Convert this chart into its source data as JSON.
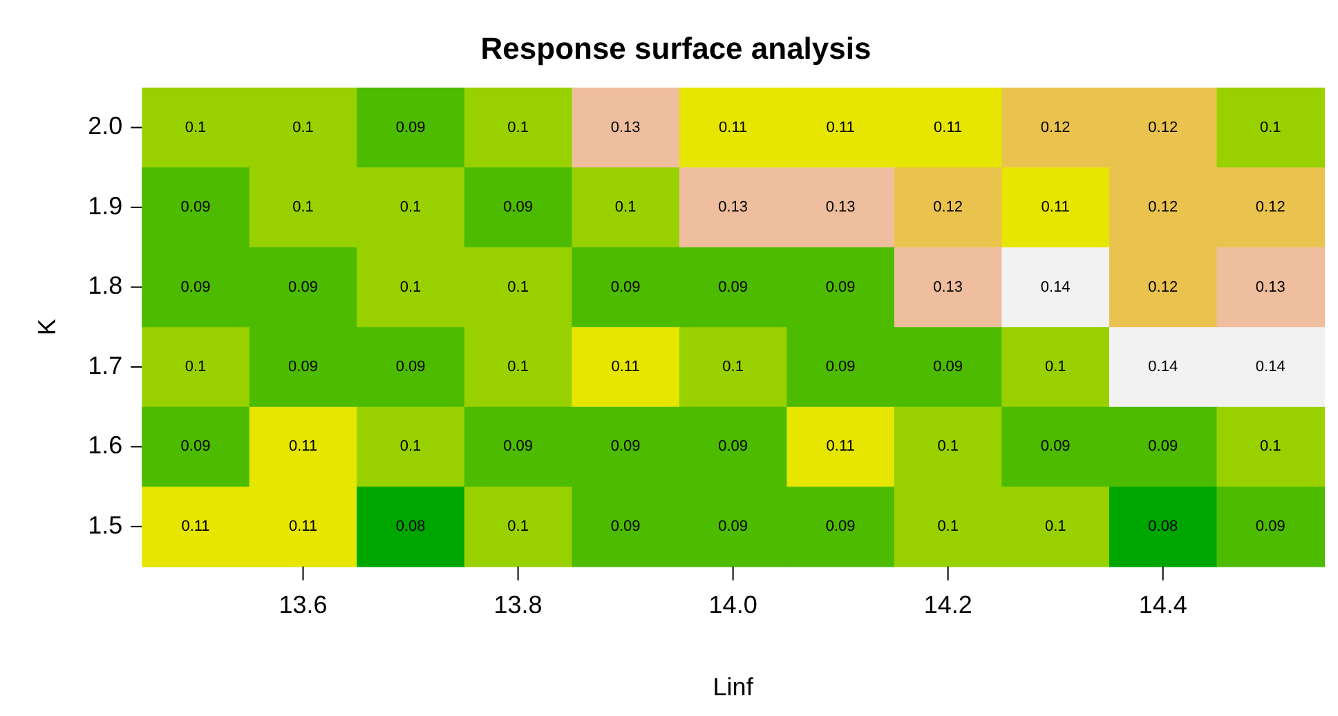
{
  "chart_data": {
    "type": "heatmap",
    "title": "Response surface analysis",
    "xlabel": "Linf",
    "ylabel": "K",
    "categories": [
      null,
      "13.6",
      null,
      "13.8",
      null,
      "14.0",
      null,
      "14.2",
      null,
      "14.4",
      null
    ],
    "y_categories": [
      "2.0",
      "1.9",
      "1.8",
      "1.7",
      "1.6",
      "1.5"
    ],
    "cells": [
      [
        0.1,
        0.1,
        0.09,
        0.1,
        0.13,
        0.11,
        0.11,
        0.11,
        0.12,
        0.12,
        0.1
      ],
      [
        0.09,
        0.1,
        0.1,
        0.09,
        0.1,
        0.13,
        0.13,
        0.12,
        0.11,
        0.12,
        0.12
      ],
      [
        0.09,
        0.09,
        0.1,
        0.1,
        0.09,
        0.09,
        0.09,
        0.13,
        0.14,
        0.12,
        0.13
      ],
      [
        0.1,
        0.09,
        0.09,
        0.1,
        0.11,
        0.1,
        0.09,
        0.09,
        0.1,
        0.14,
        0.14
      ],
      [
        0.09,
        0.11,
        0.1,
        0.09,
        0.09,
        0.09,
        0.11,
        0.1,
        0.09,
        0.09,
        0.1
      ],
      [
        0.11,
        0.11,
        0.08,
        0.1,
        0.09,
        0.09,
        0.09,
        0.1,
        0.1,
        0.08,
        0.09
      ]
    ],
    "data_labels": true
  }
}
